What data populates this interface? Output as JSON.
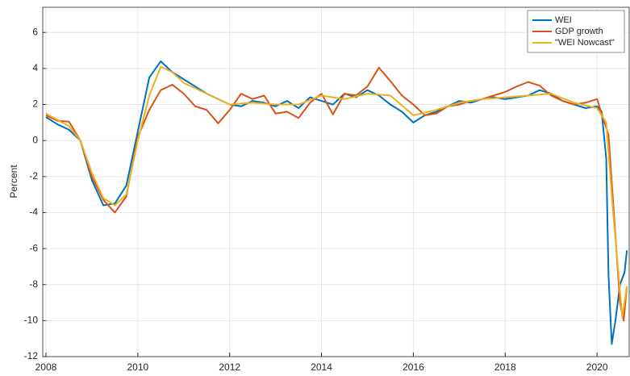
{
  "chart_data": {
    "type": "line",
    "y_label": "Percent",
    "xlim": [
      2007.93,
      2020.7
    ],
    "ylim": [
      -12,
      7.4
    ],
    "xticks": [
      2008,
      2010,
      2012,
      2014,
      2016,
      2018,
      2020
    ],
    "yticks": [
      -12,
      -10,
      -8,
      -6,
      -4,
      -2,
      0,
      2,
      4,
      6
    ],
    "grid": true,
    "legend": "top-right",
    "series": [
      {
        "name": "WEI",
        "color": "#0072bd",
        "x": [
          2008.0,
          2008.25,
          2008.5,
          2008.75,
          2009.0,
          2009.25,
          2009.5,
          2009.75,
          2010.0,
          2010.25,
          2010.5,
          2010.75,
          2011.0,
          2011.25,
          2011.5,
          2011.75,
          2012.0,
          2012.25,
          2012.5,
          2012.75,
          2013.0,
          2013.25,
          2013.5,
          2013.75,
          2014.0,
          2014.25,
          2014.5,
          2014.75,
          2015.0,
          2015.25,
          2015.5,
          2015.75,
          2016.0,
          2016.25,
          2016.5,
          2016.75,
          2017.0,
          2017.25,
          2017.5,
          2017.75,
          2018.0,
          2018.25,
          2018.5,
          2018.75,
          2019.0,
          2019.25,
          2019.5,
          2019.75,
          2020.0,
          2020.1,
          2020.2,
          2020.25,
          2020.32,
          2020.4,
          2020.5,
          2020.6,
          2020.65
        ],
        "values": [
          1.3,
          0.9,
          0.6,
          0.0,
          -2.2,
          -3.6,
          -3.5,
          -2.5,
          0.5,
          3.5,
          4.4,
          3.8,
          3.4,
          3.0,
          2.6,
          2.3,
          2.0,
          1.9,
          2.2,
          2.1,
          1.9,
          2.2,
          1.8,
          2.4,
          2.2,
          2.0,
          2.6,
          2.4,
          2.8,
          2.5,
          2.0,
          1.6,
          1.0,
          1.4,
          1.6,
          1.9,
          2.2,
          2.1,
          2.3,
          2.4,
          2.3,
          2.4,
          2.5,
          2.8,
          2.6,
          2.2,
          2.0,
          1.8,
          1.9,
          1.6,
          -1.0,
          -7.5,
          -11.3,
          -10.0,
          -8.0,
          -7.3,
          -6.1
        ]
      },
      {
        "name": "GDP growth",
        "color": "#d95319",
        "x": [
          2008.0,
          2008.25,
          2008.5,
          2008.75,
          2009.0,
          2009.25,
          2009.5,
          2009.75,
          2010.0,
          2010.25,
          2010.5,
          2010.75,
          2011.0,
          2011.25,
          2011.5,
          2011.75,
          2012.0,
          2012.25,
          2012.5,
          2012.75,
          2013.0,
          2013.25,
          2013.5,
          2013.75,
          2014.0,
          2014.25,
          2014.5,
          2014.75,
          2015.0,
          2015.25,
          2015.5,
          2015.75,
          2016.0,
          2016.25,
          2016.5,
          2016.75,
          2017.0,
          2017.25,
          2017.5,
          2017.75,
          2018.0,
          2018.25,
          2018.5,
          2018.75,
          2019.0,
          2019.25,
          2019.5,
          2019.75,
          2020.0,
          2020.25,
          2020.5,
          2020.58,
          2020.65
        ],
        "values": [
          1.4,
          1.1,
          1.05,
          0.0,
          -2.0,
          -3.3,
          -4.0,
          -3.1,
          0.2,
          1.7,
          2.8,
          3.1,
          2.6,
          1.9,
          1.7,
          0.95,
          1.7,
          2.6,
          2.3,
          2.5,
          1.5,
          1.6,
          1.25,
          2.1,
          2.6,
          1.45,
          2.6,
          2.5,
          3.0,
          4.05,
          3.3,
          2.5,
          2.0,
          1.4,
          1.5,
          1.9,
          2.0,
          2.2,
          2.3,
          2.5,
          2.7,
          3.0,
          3.25,
          3.05,
          2.5,
          2.2,
          2.0,
          2.1,
          2.3,
          0.3,
          -9.0,
          -10.0,
          -8.1
        ]
      },
      {
        "name": "\"WEI Nowcast\"",
        "color": "#edb120",
        "x": [
          2008.0,
          2008.5,
          2008.75,
          2009.0,
          2009.25,
          2009.5,
          2009.75,
          2010.0,
          2010.25,
          2010.5,
          2010.75,
          2011.0,
          2011.5,
          2012.0,
          2012.5,
          2013.0,
          2013.5,
          2014.0,
          2014.5,
          2015.0,
          2015.5,
          2016.0,
          2016.5,
          2017.0,
          2017.5,
          2018.0,
          2018.5,
          2019.0,
          2019.5,
          2020.0,
          2020.2,
          2020.35,
          2020.55,
          2020.65
        ],
        "values": [
          1.5,
          0.8,
          0.0,
          -1.8,
          -3.2,
          -3.6,
          -3.0,
          0.0,
          2.5,
          4.1,
          3.8,
          3.2,
          2.6,
          2.0,
          2.1,
          2.0,
          2.0,
          2.5,
          2.3,
          2.6,
          2.5,
          1.4,
          1.7,
          2.1,
          2.3,
          2.4,
          2.5,
          2.6,
          2.1,
          1.8,
          1.0,
          -4.0,
          -9.8,
          -8.1
        ]
      }
    ]
  }
}
